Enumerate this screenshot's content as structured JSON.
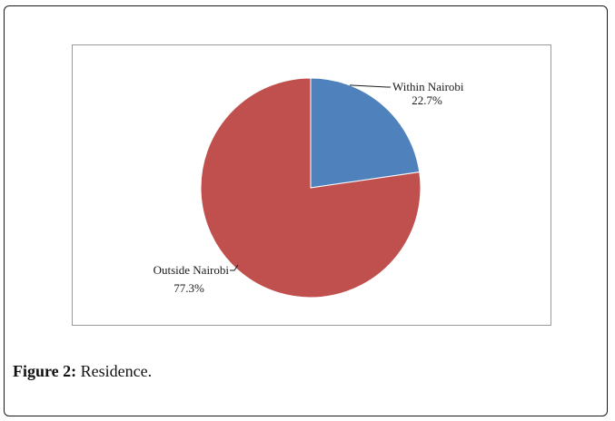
{
  "chart_data": {
    "type": "pie",
    "categories": [
      "Within Nairobi",
      "Outside Nairobi"
    ],
    "values": [
      22.7,
      77.3
    ],
    "value_labels": [
      "22.7%",
      "77.3%"
    ],
    "colors": [
      "#4f81bd",
      "#c0504d"
    ],
    "title": "",
    "legend": "none"
  },
  "caption": {
    "label": "Figure 2:",
    "text": " Residence."
  }
}
